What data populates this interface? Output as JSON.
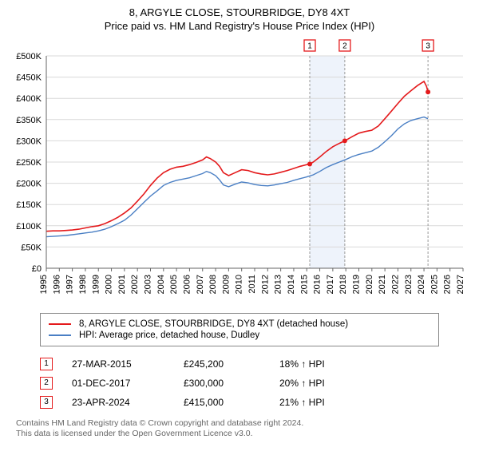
{
  "title_line1": "8, ARGYLE CLOSE, STOURBRIDGE, DY8 4XT",
  "title_line2": "Price paid vs. HM Land Registry's House Price Index (HPI)",
  "title_fontsize": 13,
  "chart": {
    "type": "line",
    "background_color": "#ffffff",
    "grid_color": "#d9d9d9",
    "axis_color": "#666666",
    "ylabel_prefix": "£",
    "ylim": [
      0,
      500000
    ],
    "ytick_step": 50000,
    "yticks": [
      "£0",
      "£50K",
      "£100K",
      "£150K",
      "£200K",
      "£250K",
      "£300K",
      "£350K",
      "£400K",
      "£450K",
      "£500K"
    ],
    "xlim": [
      1995,
      2027
    ],
    "xtick_step": 1,
    "xticks": [
      1995,
      1996,
      1997,
      1998,
      1999,
      2000,
      2001,
      2002,
      2003,
      2004,
      2005,
      2006,
      2007,
      2008,
      2009,
      2010,
      2011,
      2012,
      2013,
      2014,
      2015,
      2016,
      2017,
      2018,
      2019,
      2020,
      2021,
      2022,
      2023,
      2024,
      2025,
      2026,
      2027
    ],
    "series": [
      {
        "name": "price_paid",
        "label": "8, ARGYLE CLOSE, STOURBRIDGE, DY8 4XT (detached house)",
        "color": "#e41a1c",
        "line_width": 1.6,
        "data": [
          [
            1995.0,
            87000
          ],
          [
            1995.5,
            88000
          ],
          [
            1996.0,
            88000
          ],
          [
            1996.5,
            89000
          ],
          [
            1997.0,
            90000
          ],
          [
            1997.5,
            92000
          ],
          [
            1998.0,
            95000
          ],
          [
            1998.5,
            98000
          ],
          [
            1999.0,
            100000
          ],
          [
            1999.5,
            105000
          ],
          [
            2000.0,
            112000
          ],
          [
            2000.5,
            120000
          ],
          [
            2001.0,
            130000
          ],
          [
            2001.5,
            142000
          ],
          [
            2002.0,
            158000
          ],
          [
            2002.5,
            175000
          ],
          [
            2003.0,
            195000
          ],
          [
            2003.5,
            212000
          ],
          [
            2004.0,
            225000
          ],
          [
            2004.5,
            233000
          ],
          [
            2005.0,
            238000
          ],
          [
            2005.5,
            240000
          ],
          [
            2006.0,
            244000
          ],
          [
            2006.5,
            249000
          ],
          [
            2007.0,
            255000
          ],
          [
            2007.3,
            262000
          ],
          [
            2007.6,
            258000
          ],
          [
            2008.0,
            250000
          ],
          [
            2008.3,
            240000
          ],
          [
            2008.6,
            225000
          ],
          [
            2009.0,
            218000
          ],
          [
            2009.5,
            225000
          ],
          [
            2010.0,
            232000
          ],
          [
            2010.5,
            230000
          ],
          [
            2011.0,
            225000
          ],
          [
            2011.5,
            222000
          ],
          [
            2012.0,
            220000
          ],
          [
            2012.5,
            222000
          ],
          [
            2013.0,
            226000
          ],
          [
            2013.5,
            230000
          ],
          [
            2014.0,
            235000
          ],
          [
            2014.5,
            240000
          ],
          [
            2015.0,
            244000
          ],
          [
            2015.23,
            245200
          ],
          [
            2015.5,
            250000
          ],
          [
            2016.0,
            262000
          ],
          [
            2016.5,
            275000
          ],
          [
            2017.0,
            286000
          ],
          [
            2017.5,
            294000
          ],
          [
            2017.92,
            300000
          ],
          [
            2018.5,
            310000
          ],
          [
            2019.0,
            318000
          ],
          [
            2019.5,
            322000
          ],
          [
            2020.0,
            325000
          ],
          [
            2020.5,
            335000
          ],
          [
            2021.0,
            352000
          ],
          [
            2021.5,
            370000
          ],
          [
            2022.0,
            388000
          ],
          [
            2022.5,
            405000
          ],
          [
            2023.0,
            418000
          ],
          [
            2023.5,
            430000
          ],
          [
            2024.0,
            440000
          ],
          [
            2024.2,
            428000
          ],
          [
            2024.31,
            415000
          ]
        ]
      },
      {
        "name": "hpi",
        "label": "HPI: Average price, detached house, Dudley",
        "color": "#4a7fc4",
        "line_width": 1.4,
        "data": [
          [
            1995.0,
            74000
          ],
          [
            1995.5,
            75000
          ],
          [
            1996.0,
            76000
          ],
          [
            1996.5,
            77000
          ],
          [
            1997.0,
            79000
          ],
          [
            1997.5,
            81000
          ],
          [
            1998.0,
            83000
          ],
          [
            1998.5,
            85000
          ],
          [
            1999.0,
            88000
          ],
          [
            1999.5,
            92000
          ],
          [
            2000.0,
            98000
          ],
          [
            2000.5,
            105000
          ],
          [
            2001.0,
            113000
          ],
          [
            2001.5,
            125000
          ],
          [
            2002.0,
            140000
          ],
          [
            2002.5,
            155000
          ],
          [
            2003.0,
            170000
          ],
          [
            2003.5,
            182000
          ],
          [
            2004.0,
            195000
          ],
          [
            2004.5,
            202000
          ],
          [
            2005.0,
            207000
          ],
          [
            2005.5,
            210000
          ],
          [
            2006.0,
            213000
          ],
          [
            2006.5,
            218000
          ],
          [
            2007.0,
            223000
          ],
          [
            2007.3,
            228000
          ],
          [
            2007.6,
            225000
          ],
          [
            2008.0,
            218000
          ],
          [
            2008.3,
            208000
          ],
          [
            2008.6,
            196000
          ],
          [
            2009.0,
            192000
          ],
          [
            2009.5,
            198000
          ],
          [
            2010.0,
            203000
          ],
          [
            2010.5,
            201000
          ],
          [
            2011.0,
            197000
          ],
          [
            2011.5,
            195000
          ],
          [
            2012.0,
            194000
          ],
          [
            2012.5,
            196000
          ],
          [
            2013.0,
            199000
          ],
          [
            2013.5,
            202000
          ],
          [
            2014.0,
            207000
          ],
          [
            2014.5,
            211000
          ],
          [
            2015.0,
            215000
          ],
          [
            2015.5,
            220000
          ],
          [
            2016.0,
            228000
          ],
          [
            2016.5,
            237000
          ],
          [
            2017.0,
            244000
          ],
          [
            2017.5,
            250000
          ],
          [
            2018.0,
            256000
          ],
          [
            2018.5,
            263000
          ],
          [
            2019.0,
            268000
          ],
          [
            2019.5,
            272000
          ],
          [
            2020.0,
            276000
          ],
          [
            2020.5,
            285000
          ],
          [
            2021.0,
            298000
          ],
          [
            2021.5,
            312000
          ],
          [
            2022.0,
            328000
          ],
          [
            2022.5,
            340000
          ],
          [
            2023.0,
            348000
          ],
          [
            2023.5,
            352000
          ],
          [
            2024.0,
            356000
          ],
          [
            2024.3,
            352000
          ]
        ]
      }
    ],
    "sale_markers": [
      {
        "n": "1",
        "x": 2015.23,
        "y": 245200,
        "color": "#e41a1c",
        "dot_radius": 3,
        "band_color": "#eef3fb"
      },
      {
        "n": "2",
        "x": 2017.92,
        "y": 300000,
        "color": "#e41a1c",
        "dot_radius": 3,
        "band_color": "none"
      },
      {
        "n": "3",
        "x": 2024.31,
        "y": 415000,
        "color": "#e41a1c",
        "dot_radius": 3,
        "band_color": "none"
      }
    ],
    "callout_box": {
      "border_color": "#e41a1c",
      "fill": "#ffffff",
      "size": 14
    }
  },
  "legend": {
    "border_color": "#888888",
    "rows": [
      {
        "color": "#e41a1c",
        "label": "8, ARGYLE CLOSE, STOURBRIDGE, DY8 4XT (detached house)"
      },
      {
        "color": "#4a7fc4",
        "label": "HPI: Average price, detached house, Dudley"
      }
    ]
  },
  "sales_table": {
    "marker_border_color": "#e41a1c",
    "rows": [
      {
        "n": "1",
        "date": "27-MAR-2015",
        "price": "£245,200",
        "delta": "18% ↑ HPI"
      },
      {
        "n": "2",
        "date": "01-DEC-2017",
        "price": "£300,000",
        "delta": "20% ↑ HPI"
      },
      {
        "n": "3",
        "date": "23-APR-2024",
        "price": "£415,000",
        "delta": "21% ↑ HPI"
      }
    ]
  },
  "footer_line1": "Contains HM Land Registry data © Crown copyright and database right 2024.",
  "footer_line2": "This data is licensed under the Open Government Licence v3.0."
}
